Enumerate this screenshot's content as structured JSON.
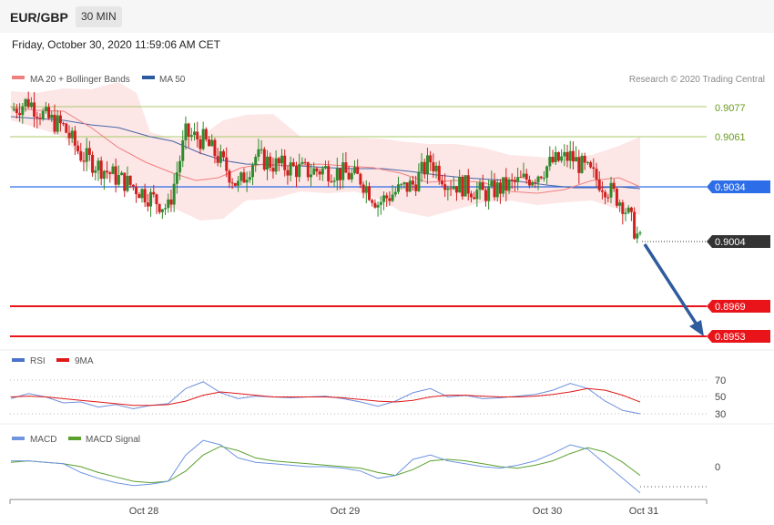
{
  "header": {
    "symbol": "EUR/GBP",
    "timeframe": "30 MIN",
    "datetime": "Friday, October 30, 2020 11:59:06 AM CET"
  },
  "price_panel": {
    "legend": [
      {
        "label": "MA 20 + Bollinger Bands",
        "color": "#f08080"
      },
      {
        "label": "MA 50",
        "color": "#2c5aa0"
      }
    ],
    "credit": "Research © 2020 Trading Central",
    "levels": [
      {
        "value": "0.9077",
        "kind": "resistance",
        "color": "#8ab23c"
      },
      {
        "value": "0.9061",
        "kind": "resistance",
        "color": "#8ab23c"
      },
      {
        "value": "0.9034",
        "kind": "pivot",
        "color": "#2e6de8"
      },
      {
        "value": "0.9004",
        "kind": "last",
        "color": "#333333"
      },
      {
        "value": "0.8969",
        "kind": "support",
        "color": "#e8141a"
      },
      {
        "value": "0.8953",
        "kind": "support",
        "color": "#e8141a"
      }
    ]
  },
  "rsi_panel": {
    "legend": [
      {
        "label": "RSI",
        "color": "#4a73c9"
      },
      {
        "label": "9MA",
        "color": "#e01818"
      }
    ],
    "levels": [
      "70",
      "50",
      "30"
    ]
  },
  "macd_panel": {
    "legend": [
      {
        "label": "MACD",
        "color": "#6f95e0"
      },
      {
        "label": "MACD Signal",
        "color": "#5aa02c"
      }
    ],
    "levels": [
      "0"
    ]
  },
  "x_axis": {
    "labels": [
      "Oct 28",
      "Oct 29",
      "Oct 30",
      "Oct 31"
    ]
  },
  "chart_data": {
    "type": "line",
    "title": "",
    "series": [
      {
        "name": "Price",
        "values": [
          0.9075,
          0.908,
          0.9071,
          0.9066,
          0.9051,
          0.9045,
          0.9039,
          0.9034,
          0.9028,
          0.9022,
          0.9062,
          0.9059,
          0.9048,
          0.9034,
          0.905,
          0.9046,
          0.9044,
          0.9042,
          0.9043,
          0.9041,
          0.9038,
          0.9025,
          0.9031,
          0.9035,
          0.9048,
          0.9036,
          0.9034,
          0.903,
          0.9033,
          0.9036,
          0.904,
          0.9047,
          0.905,
          0.9042,
          0.9034,
          0.9025,
          0.9004
        ]
      },
      {
        "name": "MA 50",
        "values": [
          0.9072,
          0.9069,
          0.9066,
          0.9062,
          0.9058,
          0.9054,
          0.905,
          0.9046,
          0.9043,
          0.9041,
          0.9043,
          0.9045,
          0.9046,
          0.9045,
          0.9044,
          0.9043,
          0.9043,
          0.9042,
          0.9042,
          0.9041,
          0.904,
          0.9039,
          0.9038,
          0.9037,
          0.9036,
          0.9035,
          0.9034,
          0.9033,
          0.9033,
          0.9033,
          0.9034,
          0.9035,
          0.9036,
          0.9037,
          0.9036,
          0.9035,
          0.9034
        ]
      }
    ],
    "rsi": [
      48,
      54,
      50,
      43,
      44,
      38,
      41,
      36,
      40,
      42,
      60,
      68,
      55,
      48,
      51,
      50,
      49,
      50,
      51,
      48,
      44,
      39,
      45,
      55,
      60,
      50,
      52,
      48,
      49,
      51,
      53,
      58,
      66,
      60,
      45,
      34,
      30
    ],
    "rsi_ma": [
      50,
      51,
      50,
      48,
      46,
      44,
      42,
      40,
      40,
      41,
      45,
      52,
      56,
      54,
      52,
      50,
      50,
      50,
      50,
      49,
      47,
      45,
      44,
      46,
      50,
      52,
      52,
      51,
      50,
      50,
      51,
      53,
      56,
      60,
      58,
      52,
      44
    ],
    "macd": [
      0.0004,
      0.0004,
      0.0003,
      0.0002,
      -0.0004,
      -0.0008,
      -0.0011,
      -0.0013,
      -0.0012,
      -0.001,
      0.0008,
      0.0018,
      0.0015,
      0.0006,
      0.0003,
      0.0002,
      0.0001,
      0.0,
      0.0,
      -0.0001,
      -0.0003,
      -0.0008,
      -0.0006,
      0.0005,
      0.0008,
      0.0004,
      0.0002,
      0.0,
      -0.0001,
      0.0001,
      0.0004,
      0.0009,
      0.0015,
      0.0012,
      0.0002,
      -0.0008,
      -0.0018
    ],
    "macd_signal": [
      0.0003,
      0.0004,
      0.0003,
      0.0002,
      0.0,
      -0.0004,
      -0.0007,
      -0.001,
      -0.0011,
      -0.001,
      -0.0003,
      0.0008,
      0.0014,
      0.0011,
      0.0006,
      0.0004,
      0.0003,
      0.0002,
      0.0001,
      0.0,
      -0.0001,
      -0.0004,
      -0.0006,
      -0.0002,
      0.0004,
      0.0005,
      0.0004,
      0.0002,
      0.0,
      -0.0001,
      0.0001,
      0.0004,
      0.0009,
      0.0013,
      0.001,
      0.0003,
      -0.0006
    ],
    "forecast": {
      "from": 0.9004,
      "to": 0.8953
    }
  }
}
